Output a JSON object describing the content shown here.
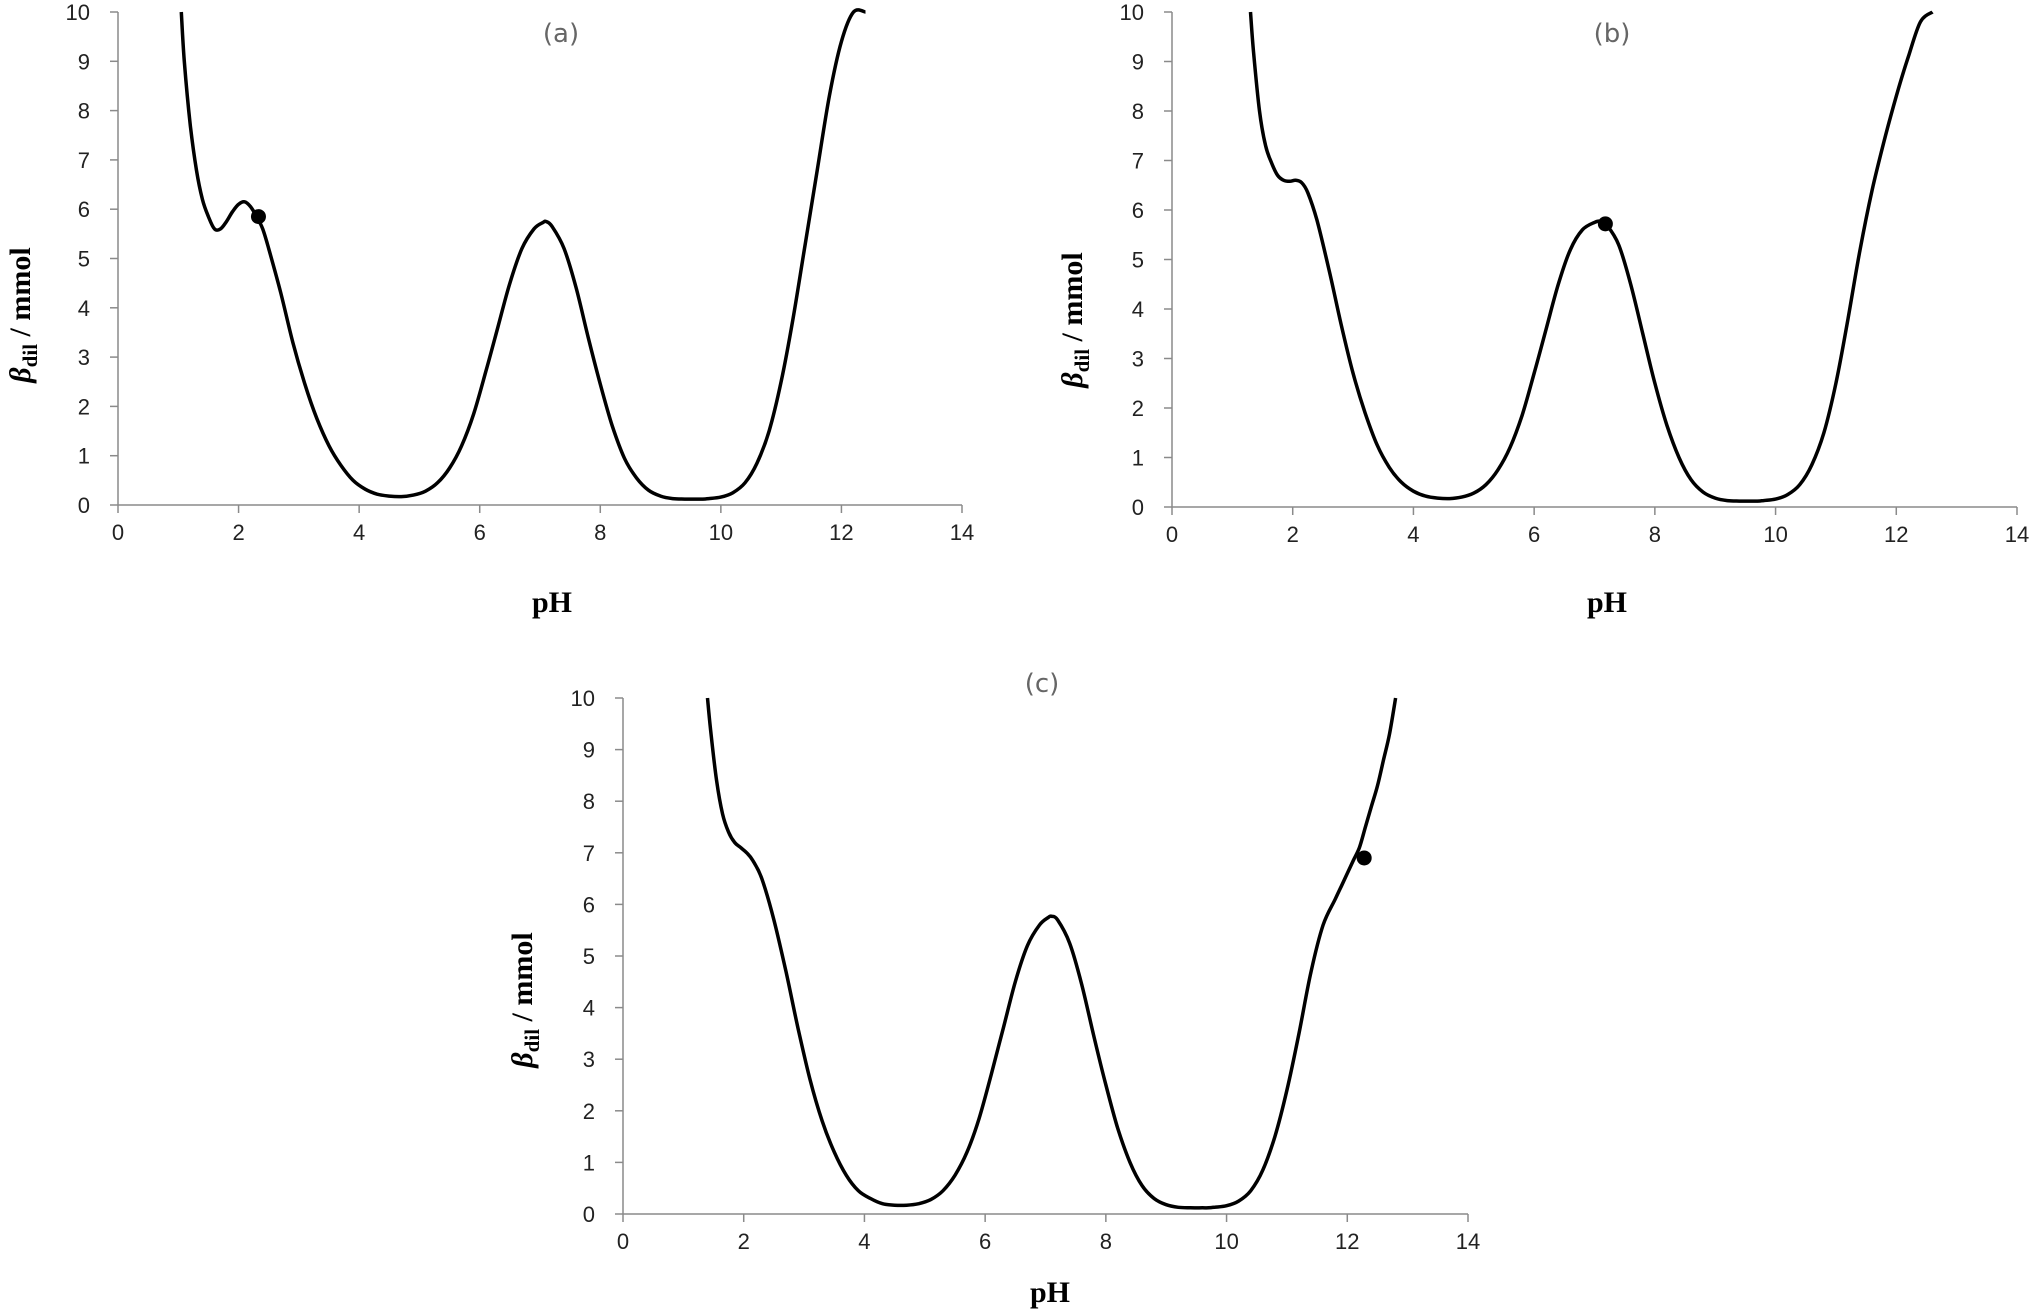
{
  "chart_data": [
    {
      "type": "line",
      "panel_label": "(a)",
      "xlabel": "pH",
      "ylabel": {
        "symbol": "β",
        "subscript": "dil",
        "unit": " / mmol"
      },
      "xlim": [
        0,
        14
      ],
      "ylim": [
        0,
        10
      ],
      "x_ticks": [
        "0",
        "2",
        "4",
        "6",
        "8",
        "10",
        "12",
        "14"
      ],
      "y_ticks": [
        "0",
        "1",
        "2",
        "3",
        "4",
        "5",
        "6",
        "7",
        "8",
        "9",
        "10"
      ],
      "grid": false,
      "series": [
        {
          "x": [
            1.05,
            1.1,
            1.2,
            1.3,
            1.4,
            1.5,
            1.6,
            1.7,
            1.8,
            1.9,
            2.0,
            2.1,
            2.2,
            2.3,
            2.4,
            2.5,
            2.7,
            2.9,
            3.1,
            3.3,
            3.5,
            3.7,
            3.9,
            4.1,
            4.3,
            4.5,
            4.7,
            4.9,
            5.1,
            5.3,
            5.5,
            5.7,
            5.9,
            6.1,
            6.3,
            6.5,
            6.7,
            6.9,
            7.05,
            7.1,
            7.2,
            7.4,
            7.6,
            7.8,
            8.0,
            8.2,
            8.4,
            8.6,
            8.8,
            9.0,
            9.2,
            9.4,
            9.6,
            9.7,
            9.8,
            10.0,
            10.2,
            10.4,
            10.6,
            10.8,
            11.0,
            11.2,
            11.4,
            11.6,
            11.8,
            12.0,
            12.2,
            12.4
          ],
          "y": [
            10.0,
            9.0,
            7.7,
            6.8,
            6.2,
            5.85,
            5.6,
            5.6,
            5.75,
            5.95,
            6.1,
            6.15,
            6.05,
            5.85,
            5.6,
            5.2,
            4.3,
            3.3,
            2.45,
            1.75,
            1.2,
            0.8,
            0.5,
            0.32,
            0.22,
            0.18,
            0.17,
            0.2,
            0.28,
            0.45,
            0.75,
            1.2,
            1.85,
            2.7,
            3.6,
            4.5,
            5.2,
            5.6,
            5.73,
            5.75,
            5.65,
            5.2,
            4.4,
            3.4,
            2.45,
            1.6,
            0.95,
            0.55,
            0.3,
            0.18,
            0.13,
            0.12,
            0.12,
            0.12,
            0.13,
            0.16,
            0.25,
            0.45,
            0.85,
            1.5,
            2.5,
            3.8,
            5.3,
            6.8,
            8.3,
            9.4,
            10.0,
            10.0
          ]
        }
      ],
      "marker": {
        "x": 2.33,
        "y": 5.85
      }
    },
    {
      "type": "line",
      "panel_label": "(b)",
      "xlabel": "pH",
      "ylabel": {
        "symbol": "β",
        "subscript": "dil",
        "unit": " / mmol"
      },
      "xlim": [
        0,
        14
      ],
      "ylim": [
        0,
        10
      ],
      "x_ticks": [
        "0",
        "2",
        "4",
        "6",
        "8",
        "10",
        "12",
        "14"
      ],
      "y_ticks": [
        "0",
        "1",
        "2",
        "3",
        "4",
        "5",
        "6",
        "7",
        "8",
        "9",
        "10"
      ],
      "grid": false,
      "series": [
        {
          "x": [
            1.3,
            1.35,
            1.45,
            1.55,
            1.65,
            1.75,
            1.85,
            1.95,
            2.05,
            2.15,
            2.25,
            2.4,
            2.6,
            2.8,
            3.0,
            3.2,
            3.4,
            3.6,
            3.8,
            4.0,
            4.2,
            4.4,
            4.6,
            4.8,
            5.0,
            5.2,
            5.4,
            5.6,
            5.8,
            6.0,
            6.2,
            6.4,
            6.6,
            6.8,
            7.0,
            7.1,
            7.2,
            7.4,
            7.6,
            7.8,
            8.0,
            8.2,
            8.4,
            8.6,
            8.8,
            9.0,
            9.2,
            9.4,
            9.6,
            9.7,
            9.8,
            10.0,
            10.2,
            10.4,
            10.6,
            10.8,
            11.0,
            11.2,
            11.4,
            11.6,
            11.8,
            12.0,
            12.2,
            12.4,
            12.6
          ],
          "y": [
            10.0,
            9.2,
            8.0,
            7.3,
            6.95,
            6.7,
            6.6,
            6.58,
            6.6,
            6.55,
            6.35,
            5.8,
            4.8,
            3.7,
            2.7,
            1.9,
            1.25,
            0.8,
            0.5,
            0.32,
            0.22,
            0.18,
            0.17,
            0.2,
            0.28,
            0.45,
            0.75,
            1.2,
            1.85,
            2.7,
            3.6,
            4.5,
            5.2,
            5.6,
            5.75,
            5.77,
            5.7,
            5.3,
            4.5,
            3.5,
            2.5,
            1.65,
            1.0,
            0.55,
            0.3,
            0.18,
            0.13,
            0.12,
            0.12,
            0.12,
            0.13,
            0.16,
            0.25,
            0.45,
            0.85,
            1.5,
            2.5,
            3.8,
            5.2,
            6.4,
            7.4,
            8.3,
            9.1,
            9.8,
            10.0
          ]
        }
      ],
      "marker": {
        "x": 7.18,
        "y": 5.72
      }
    },
    {
      "type": "line",
      "panel_label": "(c)",
      "xlabel": "pH",
      "ylabel": {
        "symbol": "β",
        "subscript": "dil",
        "unit": " / mmol"
      },
      "xlim": [
        0,
        14
      ],
      "ylim": [
        0,
        10
      ],
      "x_ticks": [
        "0",
        "2",
        "4",
        "6",
        "8",
        "10",
        "12",
        "14"
      ],
      "y_ticks": [
        "0",
        "1",
        "2",
        "3",
        "4",
        "5",
        "6",
        "7",
        "8",
        "9",
        "10"
      ],
      "grid": false,
      "series": [
        {
          "x": [
            1.4,
            1.45,
            1.55,
            1.65,
            1.75,
            1.85,
            1.95,
            2.05,
            2.15,
            2.3,
            2.5,
            2.7,
            2.9,
            3.1,
            3.3,
            3.5,
            3.7,
            3.9,
            4.1,
            4.3,
            4.5,
            4.7,
            4.9,
            5.1,
            5.3,
            5.5,
            5.7,
            5.9,
            6.1,
            6.3,
            6.5,
            6.7,
            6.9,
            7.05,
            7.1,
            7.2,
            7.4,
            7.6,
            7.8,
            8.0,
            8.2,
            8.4,
            8.6,
            8.8,
            9.0,
            9.2,
            9.4,
            9.6,
            9.7,
            9.8,
            10.0,
            10.2,
            10.4,
            10.6,
            10.8,
            11.0,
            11.2,
            11.4,
            11.6,
            11.8,
            11.9,
            12.0,
            12.1,
            12.2,
            12.3,
            12.4,
            12.5,
            12.6,
            12.7,
            12.8
          ],
          "y": [
            10.0,
            9.4,
            8.4,
            7.75,
            7.4,
            7.2,
            7.1,
            7.0,
            6.85,
            6.5,
            5.7,
            4.7,
            3.6,
            2.6,
            1.8,
            1.2,
            0.75,
            0.45,
            0.3,
            0.2,
            0.17,
            0.17,
            0.2,
            0.28,
            0.45,
            0.75,
            1.2,
            1.85,
            2.7,
            3.6,
            4.5,
            5.2,
            5.6,
            5.75,
            5.77,
            5.7,
            5.25,
            4.45,
            3.45,
            2.5,
            1.65,
            1.0,
            0.55,
            0.3,
            0.18,
            0.13,
            0.12,
            0.12,
            0.12,
            0.13,
            0.16,
            0.25,
            0.45,
            0.85,
            1.5,
            2.4,
            3.5,
            4.7,
            5.6,
            6.1,
            6.35,
            6.6,
            6.85,
            7.1,
            7.5,
            7.9,
            8.3,
            8.8,
            9.3,
            10.0
          ]
        }
      ],
      "marker": {
        "x": 12.28,
        "y": 6.9
      }
    }
  ]
}
